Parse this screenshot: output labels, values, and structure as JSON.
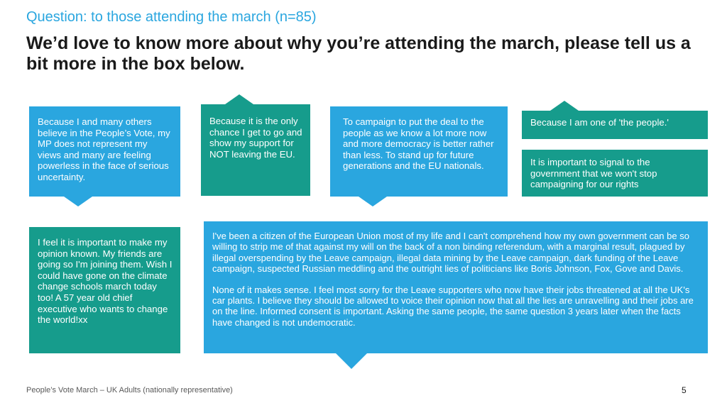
{
  "header": {
    "question": "Question: to those attending the march (n=85)",
    "title": "We’d love to know more about why you’re attending the march, please tell us a bit more in the box below."
  },
  "responses": [
    "Because I and many others believe in the People’s Vote, my MP does not represent my views and many are feeling powerless in the face of serious uncertainty.",
    "Because it is the only chance I get to go and show my support for NOT leaving the EU.",
    "To campaign to put the deal to the people as we know a lot more now and more democracy is better rather than less. To stand up for future generations and the EU nationals.",
    "Because I am one of 'the people.'",
    "It is important to signal to the government that we won't stop campaigning for our rights",
    "I feel it is important to make my opinion known. My friends are going so I'm joining them. Wish I could have gone on the climate change schools march today too! A 57 year old chief executive who wants to change the world!xx"
  ],
  "long_response": {
    "paragraph_1": "I've been a citizen of the European Union most of my life and I can't comprehend how my own government can be so willing to strip me of that against my will on the back of a non binding referendum, with a marginal result, plagued by illegal overspending by the Leave campaign, illegal data mining by the Leave campaign, dark funding of the Leave campaign, suspected Russian meddling and the outright lies of politicians like Boris Johnson, Fox, Gove and Davis.",
    "paragraph_2": "None of it makes sense. I feel most sorry for the Leave supporters who now have their jobs threatened at all the UK's car plants. I believe they should be allowed to voice their opinion now that all the lies are unravelling and their jobs are on the line. Informed consent is important. Asking the same people, the same question 3 years later when the facts have changed is not undemocratic."
  },
  "footer": {
    "source": "People’s Vote March – UK Adults (nationally representative)",
    "page_number": "5"
  },
  "colors": {
    "blue": "#2aa6df",
    "teal": "#169c8c"
  }
}
